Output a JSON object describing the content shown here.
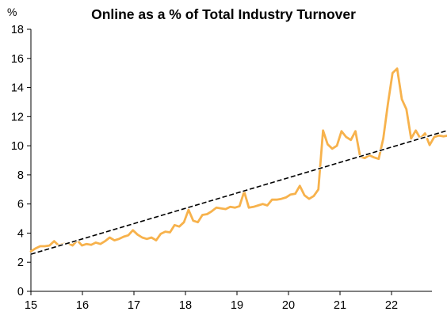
{
  "chart_data": {
    "type": "line",
    "title": "Online as a % of Total Industry Turnover",
    "ylabel": "%",
    "xlabel": "",
    "ylim": [
      0,
      18
    ],
    "yticks": [
      "0",
      "2",
      "4",
      "6",
      "8",
      "10",
      "12",
      "14",
      "16",
      "18"
    ],
    "xlim": [
      2015,
      2022.8
    ],
    "xticks": [
      {
        "x": 2015,
        "label": "15"
      },
      {
        "x": 2016,
        "label": "16"
      },
      {
        "x": 2017,
        "label": "17"
      },
      {
        "x": 2018,
        "label": "18"
      },
      {
        "x": 2019,
        "label": "19"
      },
      {
        "x": 2020,
        "label": "20"
      },
      {
        "x": 2021,
        "label": "21"
      },
      {
        "x": 2022,
        "label": "22"
      }
    ],
    "grid": false,
    "legend": "none",
    "series": [
      {
        "style": "solid",
        "color": "#f7b24c",
        "points": [
          [
            2015.0,
            2.75
          ],
          [
            2015.09,
            2.95
          ],
          [
            2015.18,
            3.1
          ],
          [
            2015.27,
            3.1
          ],
          [
            2015.36,
            3.15
          ],
          [
            2015.45,
            3.45
          ],
          [
            2015.54,
            3.15
          ],
          [
            2015.63,
            3.25
          ],
          [
            2015.72,
            3.3
          ],
          [
            2015.81,
            3.15
          ],
          [
            2015.9,
            3.5
          ],
          [
            2015.99,
            3.15
          ],
          [
            2016.08,
            3.25
          ],
          [
            2016.17,
            3.2
          ],
          [
            2016.26,
            3.35
          ],
          [
            2016.35,
            3.25
          ],
          [
            2016.44,
            3.45
          ],
          [
            2016.53,
            3.7
          ],
          [
            2016.62,
            3.5
          ],
          [
            2016.71,
            3.6
          ],
          [
            2016.8,
            3.75
          ],
          [
            2016.89,
            3.85
          ],
          [
            2016.98,
            4.2
          ],
          [
            2017.07,
            3.9
          ],
          [
            2017.16,
            3.7
          ],
          [
            2017.25,
            3.6
          ],
          [
            2017.34,
            3.7
          ],
          [
            2017.43,
            3.5
          ],
          [
            2017.52,
            3.95
          ],
          [
            2017.61,
            4.1
          ],
          [
            2017.7,
            4.05
          ],
          [
            2017.79,
            4.55
          ],
          [
            2017.88,
            4.45
          ],
          [
            2017.97,
            4.75
          ],
          [
            2018.06,
            5.6
          ],
          [
            2018.15,
            4.85
          ],
          [
            2018.24,
            4.75
          ],
          [
            2018.33,
            5.25
          ],
          [
            2018.42,
            5.3
          ],
          [
            2018.51,
            5.5
          ],
          [
            2018.6,
            5.75
          ],
          [
            2018.69,
            5.7
          ],
          [
            2018.78,
            5.65
          ],
          [
            2018.87,
            5.8
          ],
          [
            2018.96,
            5.75
          ],
          [
            2019.05,
            5.85
          ],
          [
            2019.14,
            6.85
          ],
          [
            2019.23,
            5.75
          ],
          [
            2019.32,
            5.8
          ],
          [
            2019.41,
            5.9
          ],
          [
            2019.5,
            6.0
          ],
          [
            2019.59,
            5.9
          ],
          [
            2019.68,
            6.3
          ],
          [
            2019.77,
            6.3
          ],
          [
            2019.86,
            6.35
          ],
          [
            2019.95,
            6.45
          ],
          [
            2020.04,
            6.65
          ],
          [
            2020.13,
            6.7
          ],
          [
            2020.22,
            7.25
          ],
          [
            2020.31,
            6.6
          ],
          [
            2020.4,
            6.35
          ],
          [
            2020.49,
            6.55
          ],
          [
            2020.58,
            7.0
          ],
          [
            2020.67,
            11.05
          ],
          [
            2020.76,
            10.1
          ],
          [
            2020.85,
            9.8
          ],
          [
            2020.94,
            10.0
          ],
          [
            2021.03,
            11.0
          ],
          [
            2021.12,
            10.6
          ],
          [
            2021.21,
            10.4
          ],
          [
            2021.3,
            11.0
          ],
          [
            2021.39,
            9.25
          ],
          [
            2021.48,
            9.15
          ],
          [
            2021.57,
            9.35
          ],
          [
            2021.66,
            9.2
          ],
          [
            2021.75,
            9.1
          ],
          [
            2021.84,
            10.5
          ],
          [
            2021.93,
            12.9
          ],
          [
            2022.02,
            15.0
          ],
          [
            2022.11,
            15.3
          ],
          [
            2022.2,
            13.2
          ],
          [
            2022.29,
            12.5
          ],
          [
            2022.38,
            10.5
          ],
          [
            2022.47,
            11.05
          ],
          [
            2022.56,
            10.5
          ],
          [
            2022.65,
            10.85
          ],
          [
            2022.74,
            10.05
          ],
          [
            2022.83,
            10.6
          ],
          [
            2022.92,
            10.7
          ],
          [
            2023.01,
            10.65
          ],
          [
            2023.1,
            10.7
          ],
          [
            2023.19,
            10.5
          ],
          [
            2023.28,
            10.7
          ]
        ]
      },
      {
        "style": "dashed",
        "color": "#000000",
        "points": [
          [
            2015.0,
            2.55
          ],
          [
            2023.28,
            11.25
          ]
        ]
      }
    ]
  }
}
